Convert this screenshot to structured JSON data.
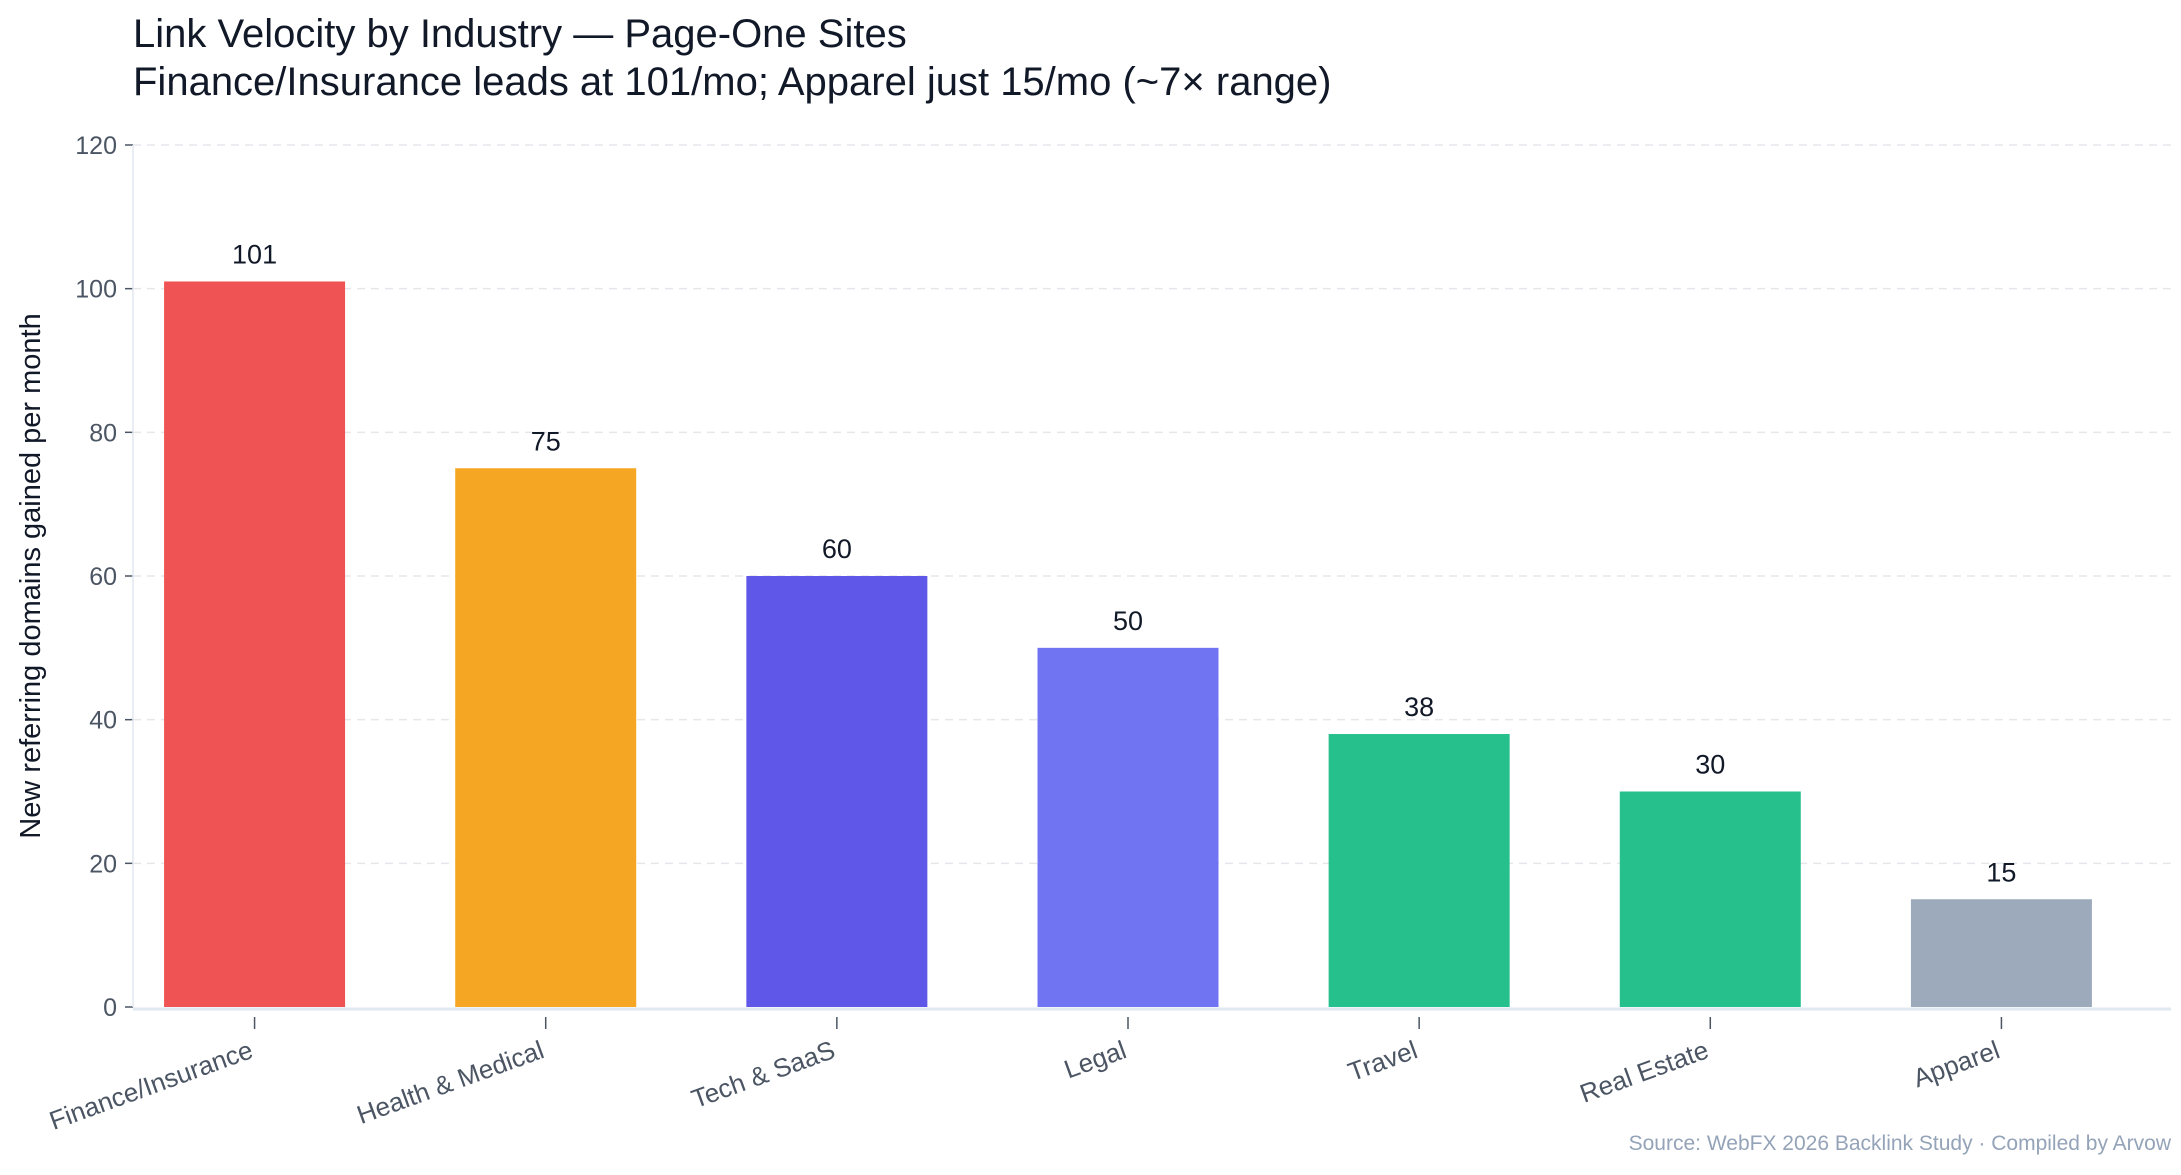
{
  "chart_data": {
    "type": "bar",
    "title": "Link Velocity by Industry — Page-One Sites",
    "subtitle": "Finance/Insurance leads at 101/mo; Apparel just 15/mo (~7× range)",
    "xlabel": "",
    "ylabel": "New referring domains gained per month",
    "ylim": [
      0,
      120
    ],
    "yticks": [
      0,
      20,
      40,
      60,
      80,
      100,
      120
    ],
    "grid": "horizontal dashed",
    "categories": [
      "Finance/Insurance",
      "Health & Medical",
      "Tech & SaaS",
      "Legal",
      "Travel",
      "Real Estate",
      "Apparel"
    ],
    "values": [
      101,
      75,
      60,
      50,
      38,
      30,
      15
    ],
    "colors": [
      "#ef5354",
      "#f5a623",
      "#5f57e7",
      "#7074f3",
      "#25c08c",
      "#25c08c",
      "#9caabc"
    ],
    "source": "Source: WebFX 2026 Backlink Study · Compiled by Arvow"
  }
}
